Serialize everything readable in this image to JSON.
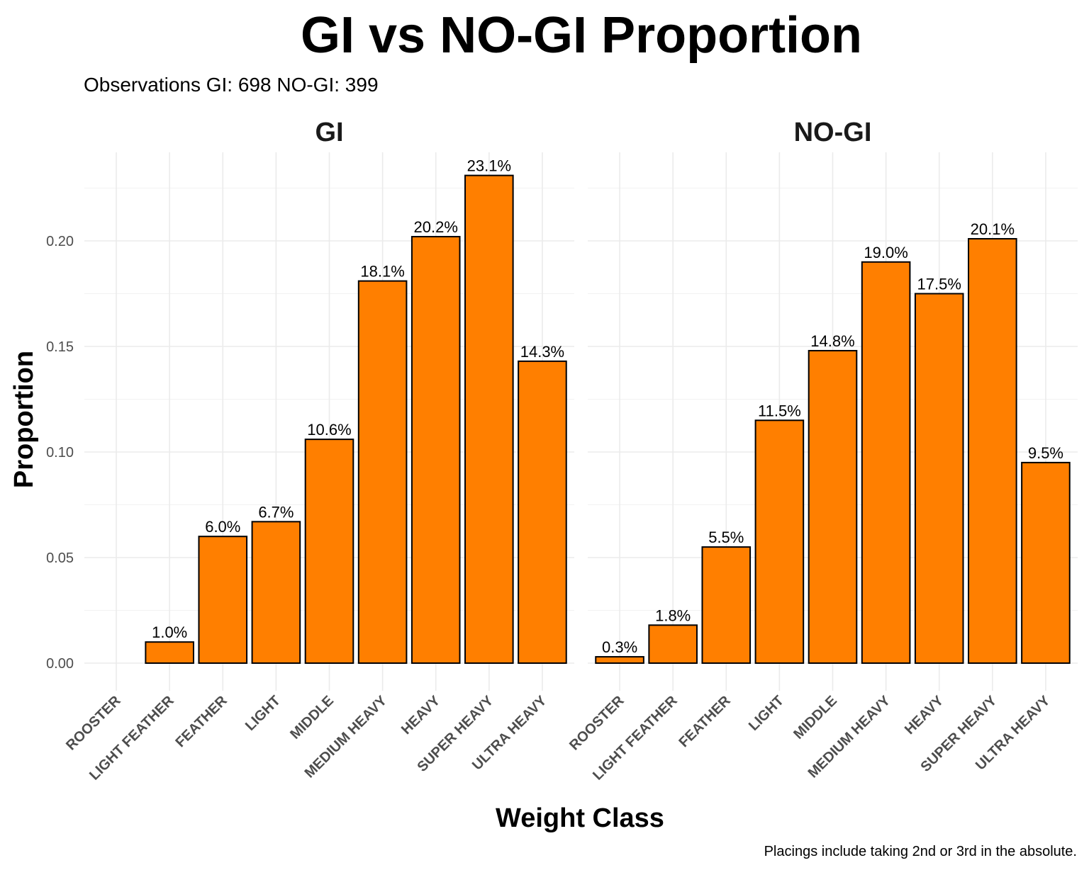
{
  "chart_data": {
    "type": "bar",
    "title": "GI vs NO-GI Proportion",
    "subtitle": "Observations  GI: 698  NO-GI: 399",
    "xlabel": "Weight Class",
    "ylabel": "Proportion",
    "caption": "Placings include taking 2nd or 3rd in the absolute.",
    "ylim": [
      0,
      0.24
    ],
    "yticks": [
      0.0,
      0.05,
      0.1,
      0.15,
      0.2
    ],
    "ytick_labels": [
      "0.00",
      "0.05",
      "0.10",
      "0.15",
      "0.20"
    ],
    "grid": true,
    "bar_color": "#FF7F00",
    "bar_outline": "#000000",
    "categories": [
      "ROOSTER",
      "LIGHT FEATHER",
      "FEATHER",
      "LIGHT",
      "MIDDLE",
      "MEDIUM HEAVY",
      "HEAVY",
      "SUPER HEAVY",
      "ULTRA HEAVY"
    ],
    "facets": [
      {
        "name": "GI",
        "values": [
          null,
          0.01,
          0.06,
          0.067,
          0.106,
          0.181,
          0.202,
          0.231,
          0.143
        ],
        "labels": [
          "",
          "1.0%",
          "6.0%",
          "6.7%",
          "10.6%",
          "18.1%",
          "20.2%",
          "23.1%",
          "14.3%"
        ]
      },
      {
        "name": "NO-GI",
        "values": [
          0.003,
          0.018,
          0.055,
          0.115,
          0.148,
          0.19,
          0.175,
          0.201,
          0.095
        ],
        "labels": [
          "0.3%",
          "1.8%",
          "5.5%",
          "11.5%",
          "14.8%",
          "19.0%",
          "17.5%",
          "20.1%",
          "9.5%"
        ]
      }
    ]
  }
}
